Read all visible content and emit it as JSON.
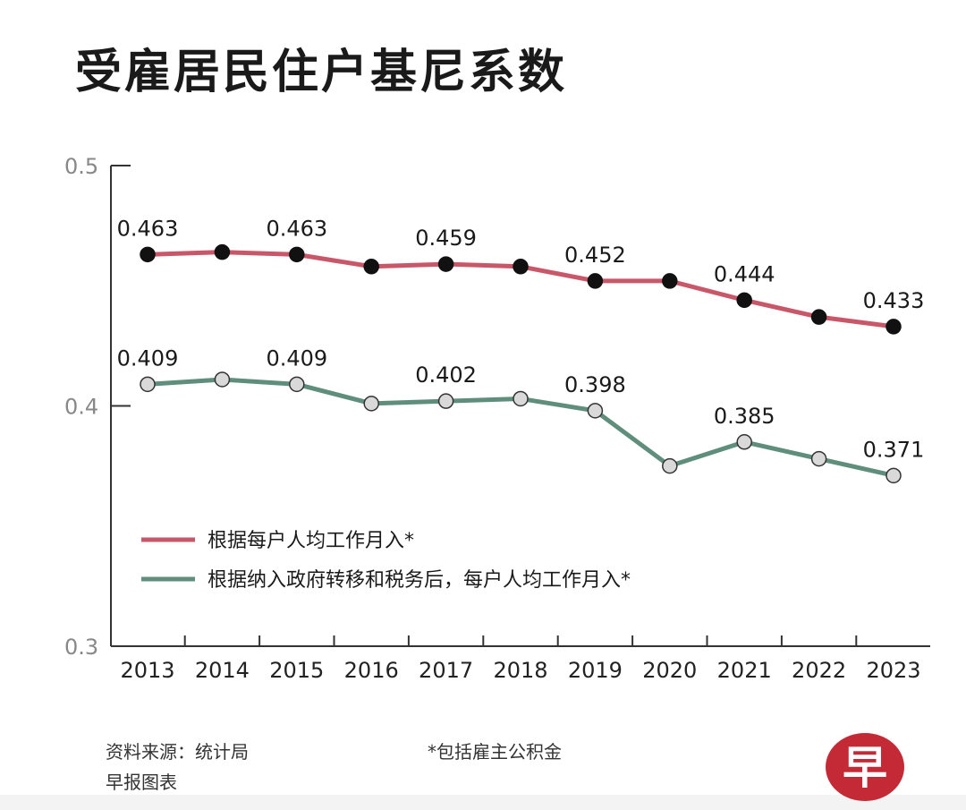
{
  "title": "受雇居民住户基尼系数",
  "colors": {
    "series1": "#c9576a",
    "series2": "#5f8f7c",
    "axis": "#333333"
  },
  "chart_data": {
    "type": "line",
    "title": "受雇居民住户基尼系数",
    "xlabel": "",
    "ylabel": "",
    "ylim": [
      0.3,
      0.5
    ],
    "yticks": [
      "0.3",
      "0.4",
      "0.5"
    ],
    "categories": [
      "2013",
      "2014",
      "2015",
      "2016",
      "2017",
      "2018",
      "2019",
      "2020",
      "2021",
      "2022",
      "2023"
    ],
    "grid": false,
    "legend_position": "lower-left",
    "series": [
      {
        "name": "根据每户人均工作月入*",
        "color": "#c9576a",
        "marker_color": "#111111",
        "values": [
          0.463,
          0.464,
          0.463,
          0.458,
          0.459,
          0.458,
          0.452,
          0.452,
          0.444,
          0.437,
          0.433
        ],
        "labels": [
          "0.463",
          "",
          "0.463",
          "",
          "0.459",
          "",
          "0.452",
          "",
          "0.444",
          "",
          "0.433"
        ]
      },
      {
        "name": "根据纳入政府转移和税务后，每户人均工作月入*",
        "color": "#5f8f7c",
        "marker_color": "#d9d9d9",
        "values": [
          0.409,
          0.411,
          0.409,
          0.401,
          0.402,
          0.403,
          0.398,
          0.375,
          0.385,
          0.378,
          0.371
        ],
        "labels": [
          "0.409",
          "",
          "0.409",
          "",
          "0.402",
          "",
          "0.398",
          "",
          "0.385",
          "",
          "0.371"
        ]
      }
    ]
  },
  "footer": {
    "source": "资料来源：统计局",
    "credit": "早报图表",
    "note": "*包括雇主公积金"
  },
  "logo_text": "早"
}
